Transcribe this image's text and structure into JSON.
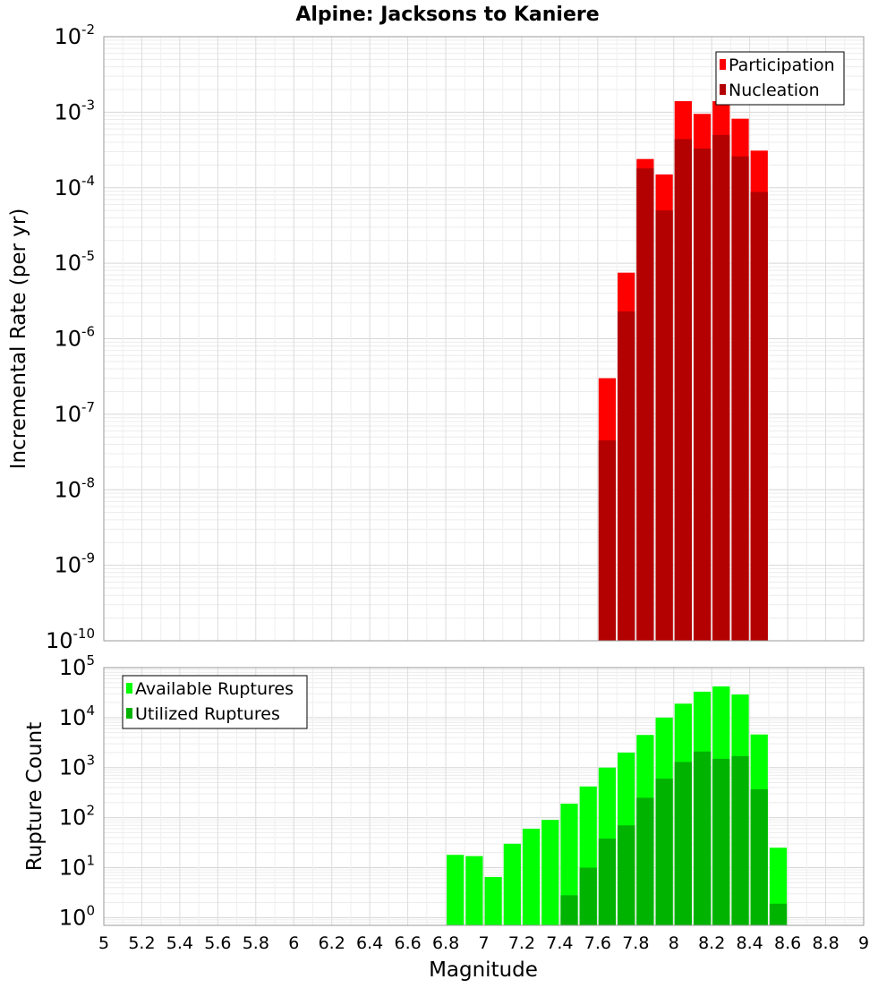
{
  "chart_data": [
    {
      "type": "bar",
      "title": "Alpine: Jacksons to Kaniere",
      "xlabel": "Magnitude",
      "ylabel": "Incremental Rate (per yr)",
      "y_scale": "log",
      "xlim": [
        5,
        9
      ],
      "ylim": [
        1e-10,
        0.01
      ],
      "grid": true,
      "legend_position": "top-right",
      "y_ticks": [
        {
          "base": "10",
          "exp": "-10",
          "value": 1e-10
        },
        {
          "base": "10",
          "exp": "-9",
          "value": 1e-09
        },
        {
          "base": "10",
          "exp": "-8",
          "value": 1e-08
        },
        {
          "base": "10",
          "exp": "-7",
          "value": 1e-07
        },
        {
          "base": "10",
          "exp": "-6",
          "value": 1e-06
        },
        {
          "base": "10",
          "exp": "-5",
          "value": 1e-05
        },
        {
          "base": "10",
          "exp": "-4",
          "value": 0.0001
        },
        {
          "base": "10",
          "exp": "-3",
          "value": 0.001
        },
        {
          "base": "10",
          "exp": "-2",
          "value": 0.01
        }
      ],
      "bin_width": 0.1,
      "x": [
        7.65,
        7.75,
        7.85,
        7.95,
        8.05,
        8.15,
        8.25,
        8.35,
        8.45
      ],
      "series": [
        {
          "name": "Participation",
          "color": "#ff0000",
          "values": [
            3e-07,
            7.5e-06,
            0.00024,
            0.00015,
            0.0014,
            0.00095,
            0.0014,
            0.00082,
            0.00031
          ]
        },
        {
          "name": "Nucleation",
          "color": "#b30000",
          "values": [
            4.5e-08,
            2.3e-06,
            0.00018,
            5e-05,
            0.00044,
            0.00033,
            0.0005,
            0.00026,
            8.8e-05
          ]
        }
      ]
    },
    {
      "type": "bar",
      "title": "",
      "xlabel": "Magnitude",
      "ylabel": "Rupture Count",
      "y_scale": "log",
      "xlim": [
        5,
        9
      ],
      "ylim": [
        0.7,
        100000.0
      ],
      "grid": true,
      "legend_position": "top-left",
      "y_ticks": [
        {
          "base": "10",
          "exp": "0",
          "value": 1
        },
        {
          "base": "10",
          "exp": "1",
          "value": 10
        },
        {
          "base": "10",
          "exp": "2",
          "value": 100
        },
        {
          "base": "10",
          "exp": "3",
          "value": 1000
        },
        {
          "base": "10",
          "exp": "4",
          "value": 10000
        },
        {
          "base": "10",
          "exp": "5",
          "value": 100000
        }
      ],
      "x_ticks": [
        "5",
        "5.2",
        "5.4",
        "5.6",
        "5.8",
        "6",
        "6.2",
        "6.4",
        "6.6",
        "6.8",
        "7",
        "7.2",
        "7.4",
        "7.6",
        "7.8",
        "8",
        "8.2",
        "8.4",
        "8.6",
        "8.8",
        "9"
      ],
      "bin_width": 0.1,
      "x": [
        6.85,
        6.95,
        7.05,
        7.15,
        7.25,
        7.35,
        7.45,
        7.55,
        7.65,
        7.75,
        7.85,
        7.95,
        8.05,
        8.15,
        8.25,
        8.35,
        8.45,
        8.55
      ],
      "series": [
        {
          "name": "Available Ruptures",
          "color": "#00ff00",
          "values": [
            18,
            17,
            6.5,
            30,
            60,
            90,
            190,
            420,
            1000,
            2000,
            4500,
            10000,
            19000,
            33000,
            42000,
            29000,
            4600,
            25
          ]
        },
        {
          "name": "Utilized Ruptures",
          "color": "#00b300",
          "values": [
            null,
            null,
            null,
            null,
            null,
            null,
            2.8,
            10,
            38,
            70,
            250,
            600,
            1300,
            2100,
            1500,
            1700,
            370,
            1.9
          ]
        }
      ]
    }
  ]
}
